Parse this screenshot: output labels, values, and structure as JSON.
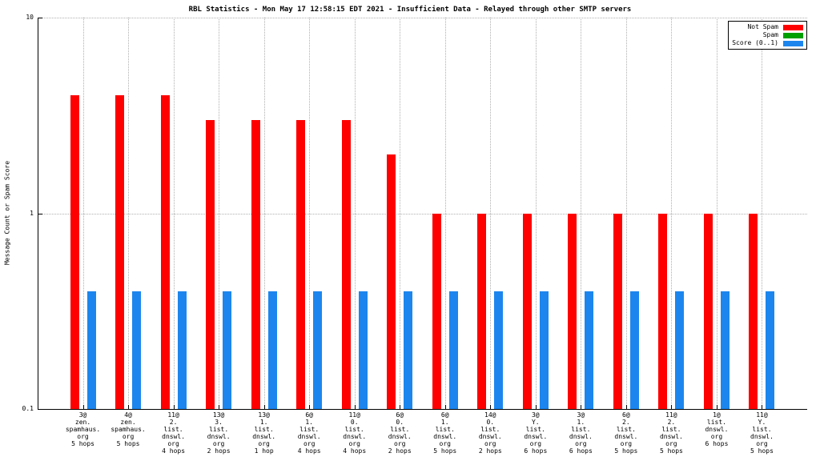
{
  "title": "RBL Statistics - Mon May 17 12:58:15 EDT 2021 - Insufficient Data - Relayed through other SMTP servers",
  "ylabel": "Message Count or Spam Score",
  "legend": [
    {
      "label": "Not Spam",
      "color": "#ff0000"
    },
    {
      "label": "Spam",
      "color": "#00a000"
    },
    {
      "label": "Score (0..1)",
      "color": "#1c86ee"
    }
  ],
  "chart_data": {
    "type": "bar",
    "scale": "log",
    "title": "RBL Statistics - Mon May 17 12:58:15 EDT 2021 - Insufficient Data - Relayed through other SMTP servers",
    "xlabel": "",
    "ylabel": "Message Count or Spam Score",
    "ylim": [
      0.1,
      10
    ],
    "yticks": [
      "10",
      "1",
      "0.1"
    ],
    "grid": true,
    "legend_position": "top-right",
    "categories": [
      [
        "3@",
        "zen.",
        "spamhaus.",
        "org",
        "5 hops"
      ],
      [
        "4@",
        "zen.",
        "spamhaus.",
        "org",
        "5 hops"
      ],
      [
        "11@",
        "2.",
        "list.",
        "dnswl.",
        "org",
        "4 hops"
      ],
      [
        "13@",
        "3.",
        "list.",
        "dnswl.",
        "org",
        "2 hops"
      ],
      [
        "13@",
        "1.",
        "list.",
        "dnswl.",
        "org",
        "1 hop"
      ],
      [
        "6@",
        "1.",
        "list.",
        "dnswl.",
        "org",
        "4 hops"
      ],
      [
        "11@",
        "0.",
        "list.",
        "dnswl.",
        "org",
        "4 hops"
      ],
      [
        "6@",
        "0.",
        "list.",
        "dnswl.",
        "org",
        "2 hops"
      ],
      [
        "6@",
        "1.",
        "list.",
        "dnswl.",
        "org",
        "5 hops"
      ],
      [
        "14@",
        "0.",
        "list.",
        "dnswl.",
        "org",
        "2 hops"
      ],
      [
        "3@",
        "Y.",
        "list.",
        "dnswl.",
        "org",
        "6 hops"
      ],
      [
        "3@",
        "1.",
        "list.",
        "dnswl.",
        "org",
        "6 hops"
      ],
      [
        "6@",
        "2.",
        "list.",
        "dnswl.",
        "org",
        "5 hops"
      ],
      [
        "11@",
        "2.",
        "list.",
        "dnswl.",
        "org",
        "5 hops"
      ],
      [
        "1@",
        "list.",
        "dnswl.",
        "org",
        "6 hops"
      ],
      [
        "11@",
        "Y.",
        "list.",
        "dnswl.",
        "org",
        "5 hops"
      ]
    ],
    "series": [
      {
        "name": "Not Spam",
        "color": "#ff0000",
        "values": [
          4,
          4,
          4,
          3,
          3,
          3,
          3,
          2,
          1,
          1,
          1,
          1,
          1,
          1,
          1,
          1
        ]
      },
      {
        "name": "Spam",
        "color": "#00a000",
        "values": [
          0.1,
          0.1,
          0.1,
          0.1,
          0.1,
          0.1,
          0.1,
          0.1,
          0.1,
          0.1,
          0.1,
          0.1,
          0.1,
          0.1,
          0.1,
          0.1
        ]
      },
      {
        "name": "Score (0..1)",
        "color": "#1c86ee",
        "values": [
          0.4,
          0.4,
          0.4,
          0.4,
          0.4,
          0.4,
          0.4,
          0.4,
          0.4,
          0.4,
          0.4,
          0.4,
          0.4,
          0.4,
          0.4,
          0.4
        ]
      }
    ]
  }
}
